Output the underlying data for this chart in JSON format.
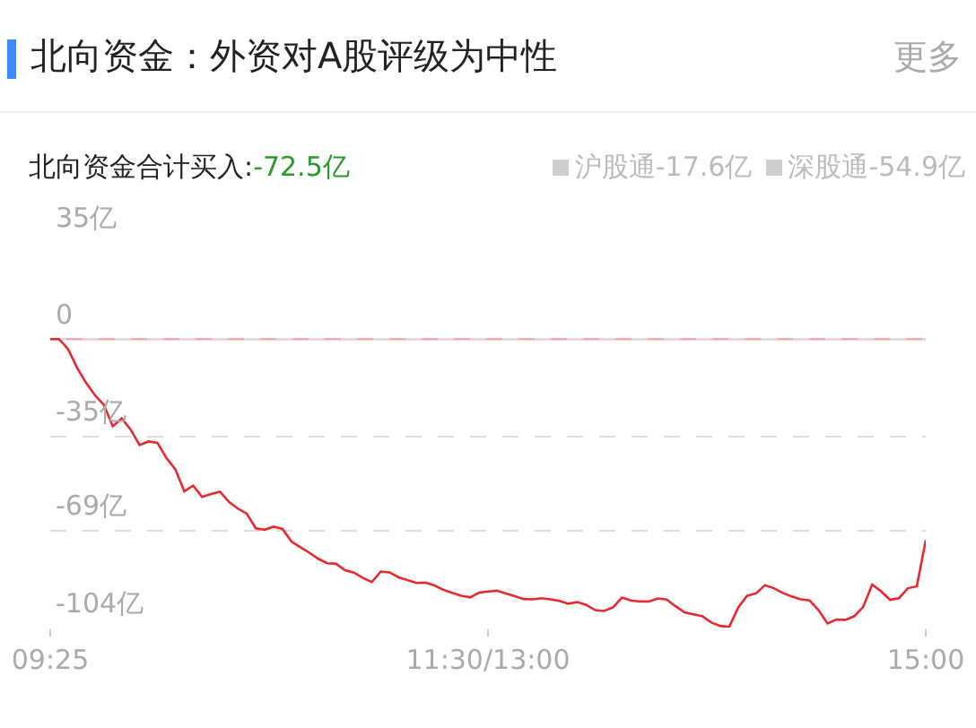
{
  "chart_data": {
    "type": "line",
    "title": "北向资金：外资对A股评级为中性",
    "subtitle": "北向资金合计买入:-72.5亿",
    "annotations": [
      "更多",
      "沪股通-17.6亿",
      "深股通-54.9亿"
    ],
    "categories": [
      "09:25",
      null,
      null,
      null,
      null,
      null,
      null,
      null,
      null,
      null,
      null,
      null,
      null,
      null,
      null,
      null,
      null,
      null,
      null,
      null,
      null,
      null,
      null,
      null,
      null,
      null,
      null,
      null,
      null,
      null,
      null,
      null,
      null,
      null,
      null,
      null,
      null,
      null,
      null,
      null,
      null,
      null,
      null,
      null,
      null,
      null,
      null,
      null,
      null,
      "11:30/13:00",
      null,
      null,
      null,
      null,
      null,
      null,
      null,
      null,
      null,
      null,
      null,
      null,
      null,
      null,
      null,
      null,
      null,
      null,
      null,
      null,
      null,
      null,
      null,
      null,
      null,
      null,
      null,
      null,
      null,
      null,
      null,
      null,
      null,
      null,
      null,
      null,
      null,
      null,
      null,
      null,
      null,
      null,
      null,
      null,
      null,
      null,
      null,
      null,
      "15:00"
    ],
    "series": [
      {
        "color": "#e8282e",
        "values": [
          0,
          0,
          -3.6,
          -10.3,
          -15.7,
          -20.2,
          -23.7,
          -31.4,
          -28.6,
          -32.6,
          -38.2,
          -36.9,
          -37.4,
          -42.8,
          -46.9,
          -54.9,
          -52.8,
          -56.9,
          -55.8,
          -55.0,
          -58.7,
          -61.1,
          -62.9,
          -68.2,
          -68.7,
          -67.6,
          -68.4,
          -73.0,
          -75.0,
          -77.0,
          -79.2,
          -80.8,
          -81.0,
          -83.3,
          -84.2,
          -86.1,
          -87.6,
          -83.8,
          -84.1,
          -85.9,
          -86.9,
          -87.9,
          -87.8,
          -88.8,
          -90.4,
          -91.5,
          -92.5,
          -93.1,
          -91.4,
          -91.0,
          -90.7,
          -91.7,
          -92.7,
          -93.7,
          -93.8,
          -93.4,
          -93.8,
          -94.4,
          -95.4,
          -94.8,
          -95.8,
          -97.7,
          -98.0,
          -96.7,
          -93.2,
          -94.2,
          -94.6,
          -94.6,
          -93.5,
          -93.9,
          -96.3,
          -98.5,
          -99.2,
          -99.9,
          -102.2,
          -103.4,
          -103.8,
          -96.8,
          -92.5,
          -91.7,
          -88.7,
          -89.8,
          -91.5,
          -92.8,
          -93.8,
          -94.2,
          -97.7,
          -102.5,
          -101.1,
          -101.2,
          -99.9,
          -96.5,
          -88.5,
          -90.9,
          -94.0,
          -93.4,
          -89.8,
          -89.1,
          -72.5
        ]
      }
    ],
    "ylim": [
      -104,
      35
    ],
    "yticks": [
      {
        "value": 35,
        "label": "35亿"
      },
      0,
      {
        "value": -35,
        "label": "-35亿"
      },
      {
        "value": -69,
        "label": "-69亿"
      },
      {
        "value": -104,
        "label": "-104亿"
      }
    ],
    "ref_lines": [
      {
        "axis": "y",
        "value": 0,
        "color": "#f2aaaa"
      }
    ],
    "grid": "y",
    "line_style": "solid"
  }
}
